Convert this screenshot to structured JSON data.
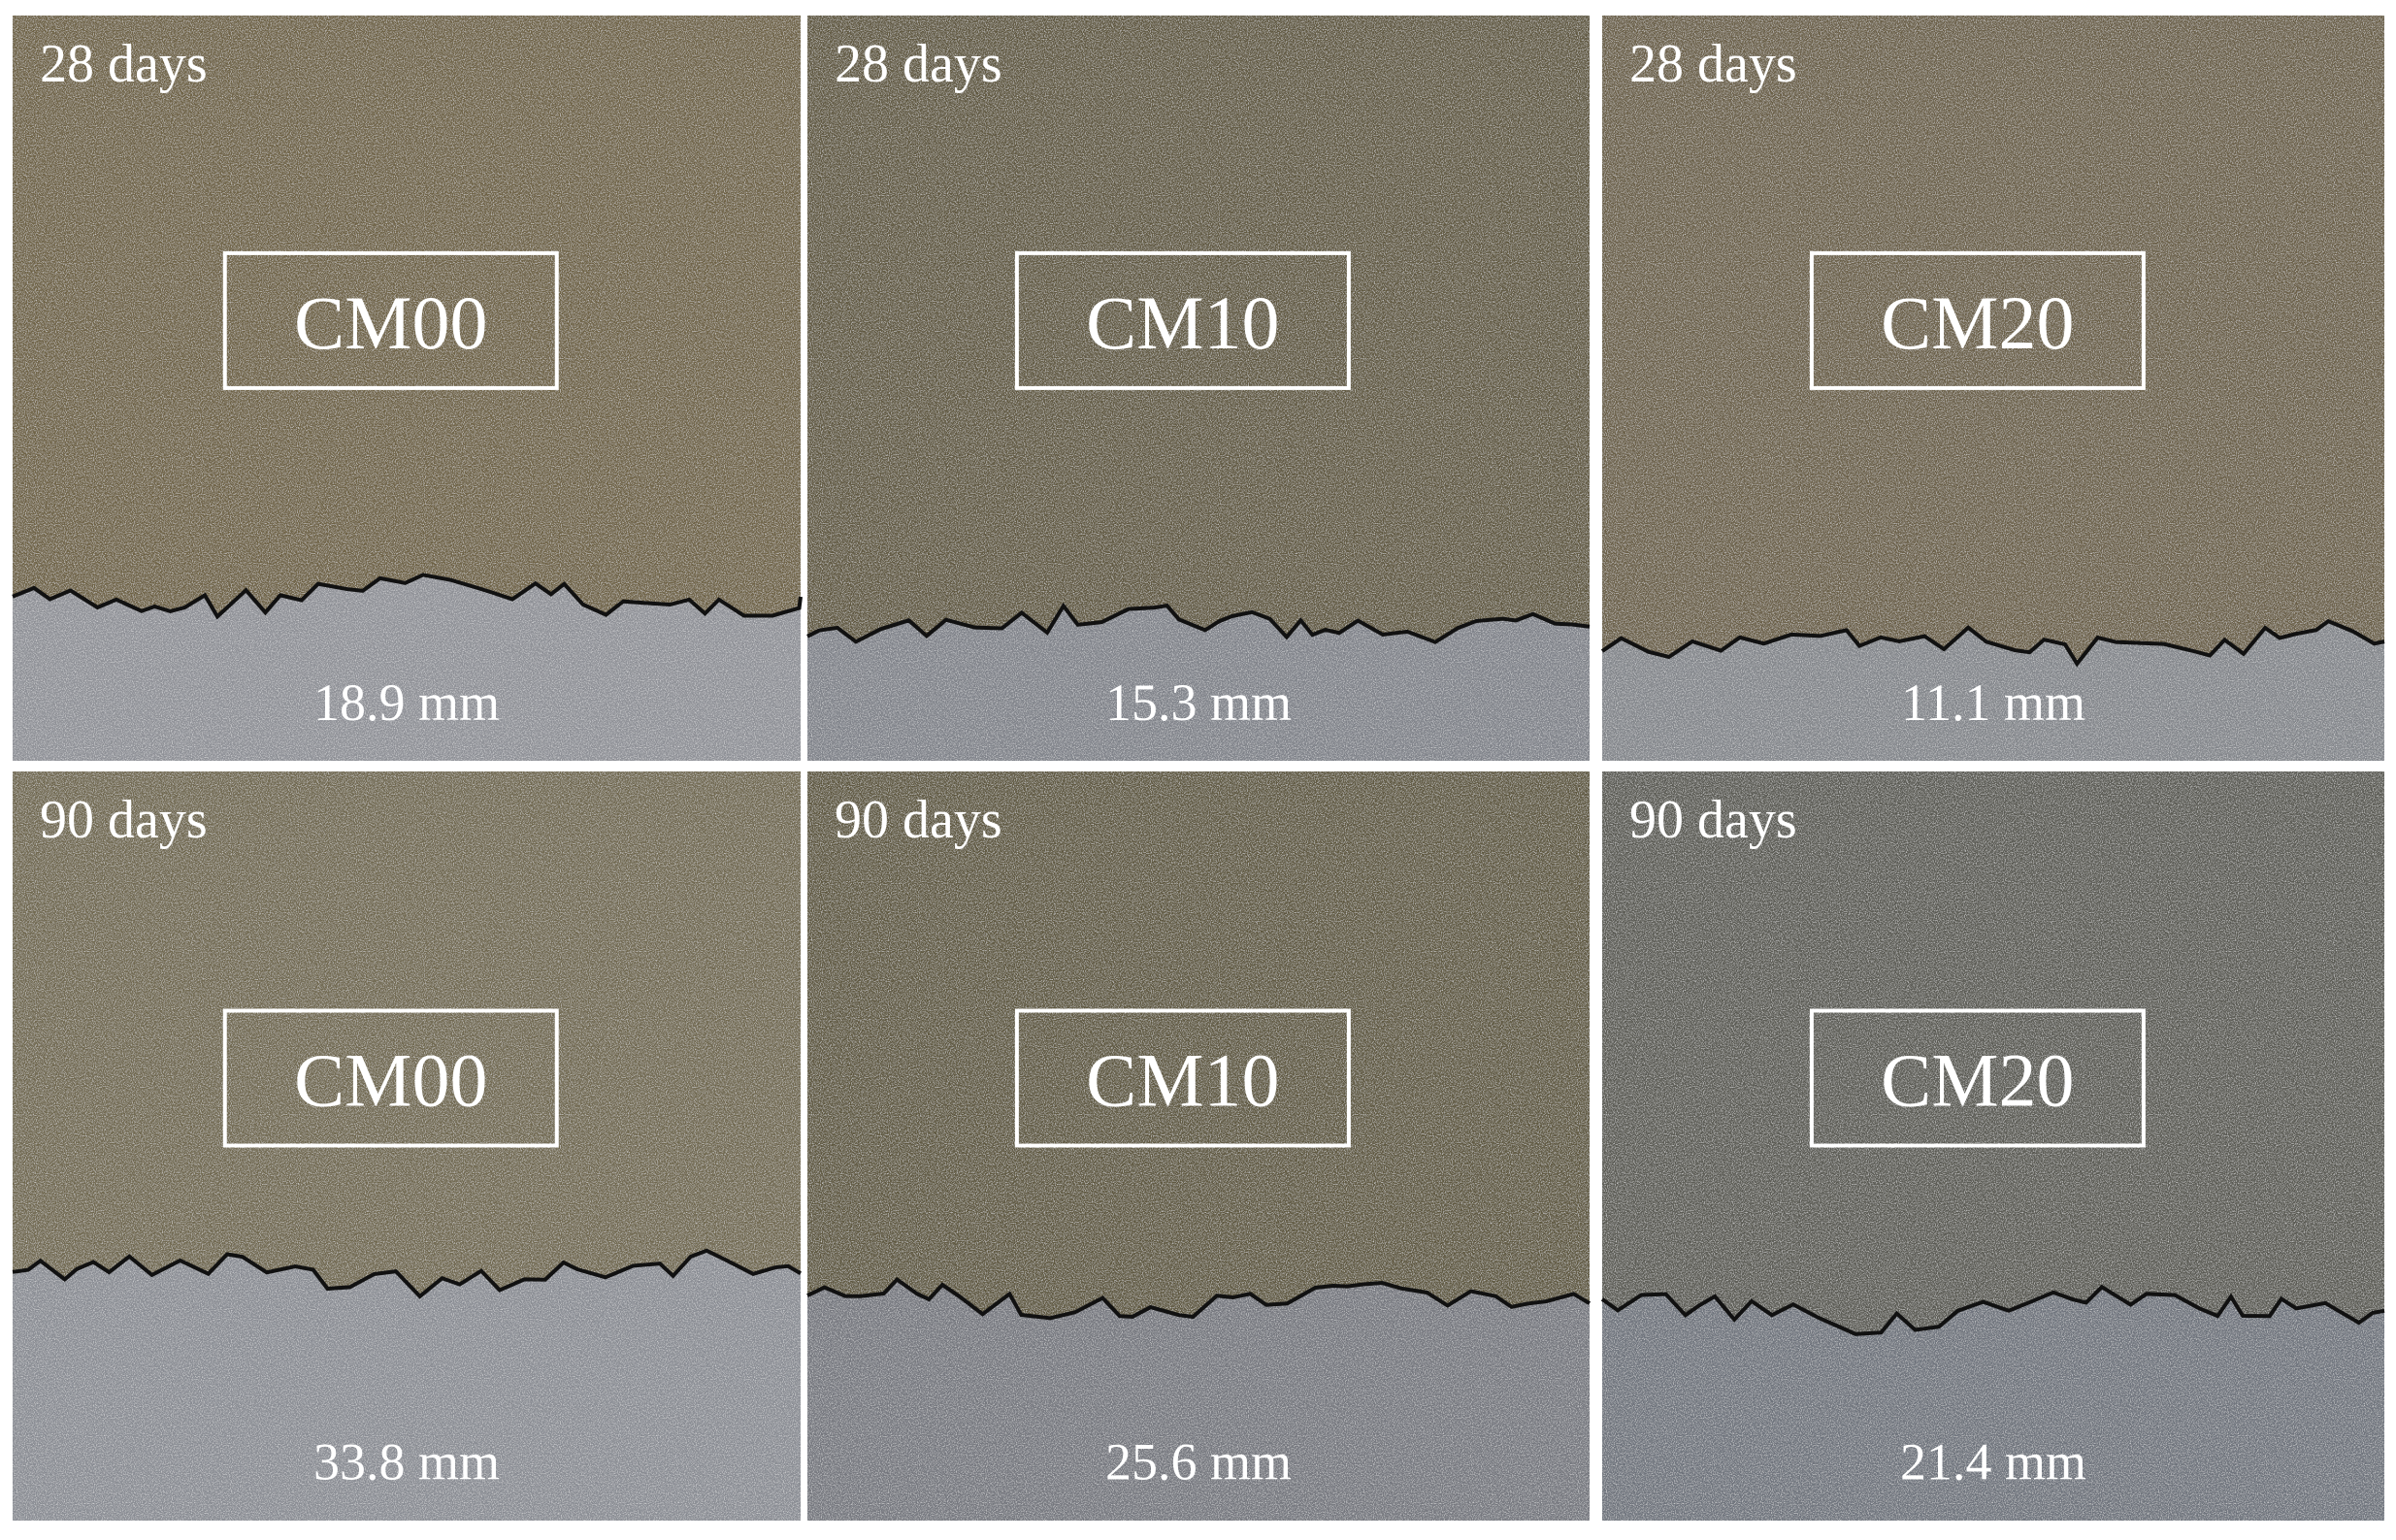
{
  "panels": [
    {
      "age": "28 days",
      "mix": "CM00",
      "depth": "18.9  mm"
    },
    {
      "age": "28 days",
      "mix": "CM10",
      "depth": "15.3  mm"
    },
    {
      "age": "28 days",
      "mix": "CM20",
      "depth": "11.1  mm"
    },
    {
      "age": "90 days",
      "mix": "CM00",
      "depth": "33.8  mm"
    },
    {
      "age": "90 days",
      "mix": "CM10",
      "depth": "25.6  mm"
    },
    {
      "age": "90 days",
      "mix": "CM20",
      "depth": "21.4  mm"
    }
  ]
}
